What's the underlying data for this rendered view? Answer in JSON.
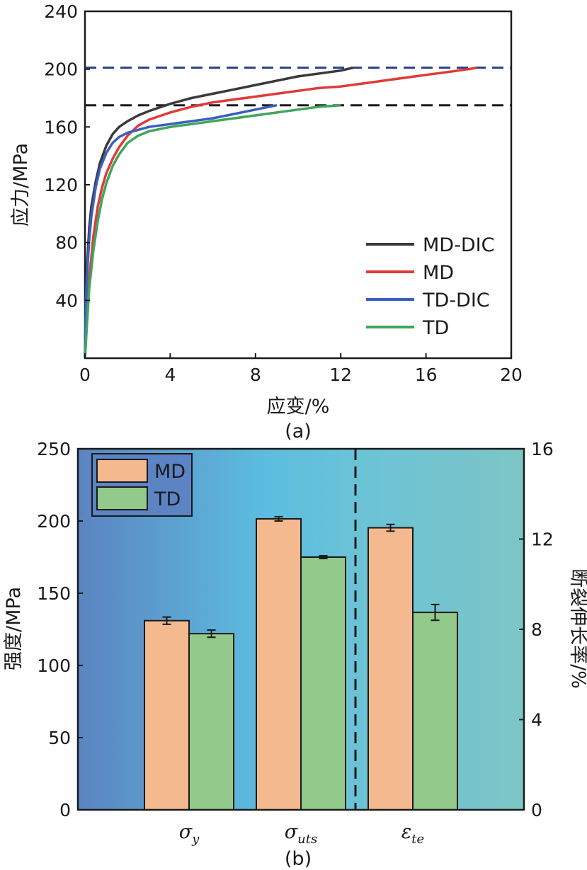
{
  "chart_data": [
    {
      "type": "line",
      "caption": "(a)",
      "xlabel": "应变/%",
      "ylabel": "应力/MPa",
      "xlim": [
        0,
        20
      ],
      "ylim": [
        0,
        240
      ],
      "xticks": [
        0,
        4,
        8,
        12,
        16,
        20
      ],
      "yticks": [
        40,
        80,
        120,
        160,
        200,
        240
      ],
      "reference_lines": [
        {
          "y": 201,
          "style": "dashed",
          "color": "#2a3f8f"
        },
        {
          "y": 175,
          "style": "dashed",
          "color": "#1a1a1a"
        }
      ],
      "legend_position": "bottom-right",
      "series": [
        {
          "name": "MD-DIC",
          "color": "#3a3a3a",
          "x": [
            0,
            0.05,
            0.1,
            0.2,
            0.3,
            0.5,
            0.7,
            1.0,
            1.3,
            1.6,
            2.0,
            2.5,
            3.0,
            4.0,
            5.0,
            6.0,
            7.0,
            8.0,
            9.0,
            10.0,
            11.0,
            12.0,
            12.6
          ],
          "y": [
            0,
            45,
            65,
            90,
            105,
            122,
            135,
            147,
            155,
            160,
            164,
            168,
            171,
            176,
            180,
            183,
            186,
            189,
            192,
            195,
            197,
            199,
            201
          ]
        },
        {
          "name": "MD",
          "color": "#e03a3a",
          "x": [
            0,
            0.1,
            0.2,
            0.4,
            0.6,
            0.8,
            1.0,
            1.3,
            1.6,
            2.0,
            2.5,
            3.0,
            4.0,
            5.0,
            6.0,
            7.0,
            8.0,
            9.0,
            10.0,
            11.0,
            12.0,
            13.0,
            14.0,
            15.0,
            16.0,
            17.0,
            18.0,
            18.4
          ],
          "y": [
            0,
            30,
            55,
            85,
            105,
            118,
            128,
            138,
            146,
            154,
            161,
            165,
            170,
            174,
            177,
            179,
            181,
            183,
            185,
            187,
            188,
            190,
            192,
            194,
            196,
            198,
            200,
            201
          ]
        },
        {
          "name": "TD-DIC",
          "color": "#3a5fc0",
          "x": [
            0,
            0.05,
            0.1,
            0.2,
            0.3,
            0.5,
            0.7,
            1.0,
            1.3,
            1.6,
            2.0,
            2.5,
            3.0,
            4.0,
            5.0,
            6.0,
            7.0,
            8.0,
            9.0
          ],
          "y": [
            0,
            40,
            58,
            82,
            98,
            118,
            131,
            142,
            149,
            153,
            156,
            158,
            160,
            162,
            164,
            166,
            169,
            172,
            175
          ]
        },
        {
          "name": "TD",
          "color": "#3fa65a",
          "x": [
            0,
            0.1,
            0.2,
            0.4,
            0.6,
            0.8,
            1.0,
            1.3,
            1.6,
            2.0,
            2.5,
            3.0,
            4.0,
            5.0,
            6.0,
            7.0,
            8.0,
            9.0,
            10.0,
            11.0,
            12.0
          ],
          "y": [
            0,
            25,
            48,
            75,
            95,
            110,
            121,
            133,
            141,
            149,
            154,
            157,
            160,
            162,
            164,
            166,
            168,
            170,
            172,
            174,
            175
          ]
        }
      ]
    },
    {
      "type": "bar",
      "caption": "(b)",
      "ylabel": "强度/MPa",
      "y2label": "断裂伸长率/%",
      "ylim": [
        0,
        250
      ],
      "y2lim": [
        0,
        16
      ],
      "yticks": [
        0,
        50,
        100,
        150,
        200,
        250
      ],
      "y2ticks": [
        0,
        4,
        8,
        12,
        16
      ],
      "legend_position": "top-left",
      "categories": [
        {
          "base": "σ",
          "sub": "y"
        },
        {
          "base": "σ",
          "sub": "uts"
        },
        {
          "base": "ε",
          "sub": "te"
        }
      ],
      "series": [
        {
          "name": "MD",
          "color": "#f5b990",
          "values": [
            131,
            201.5,
            12.5
          ],
          "errors": [
            2.5,
            1.5,
            0.15
          ],
          "axis": [
            "left",
            "left",
            "right"
          ]
        },
        {
          "name": "TD",
          "color": "#93c98a",
          "values": [
            122,
            175,
            8.75
          ],
          "errors": [
            2.5,
            1.0,
            0.35
          ],
          "axis": [
            "left",
            "left",
            "right"
          ]
        }
      ]
    }
  ]
}
